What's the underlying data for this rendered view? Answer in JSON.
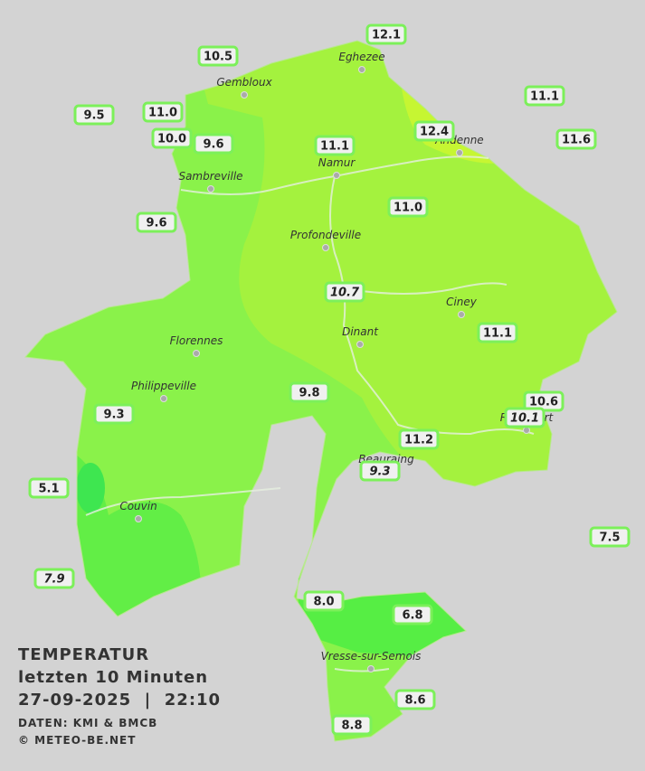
{
  "title": "TEMPERATUR",
  "subtitle": "letzten 10 Minuten",
  "datetime": "27-09-2025  |  22:10",
  "source": "DATEN: KMI & BMCB",
  "credit": "© METEO-BE.NET",
  "towns": [
    "Eghezee",
    "Gembloux",
    "Andenne",
    "Namur",
    "Sambreville",
    "Profondeville",
    "Ciney",
    "Dinant",
    "Florennes",
    "Philippeville",
    "Rochefort",
    "Beauraing",
    "Couvin",
    "Vresse-sur-Semois"
  ],
  "stations": [
    "12.1",
    "10.5",
    "9.5",
    "11.0",
    "10.0",
    "9.6",
    "11.1",
    "12.4",
    "11.1",
    "11.6",
    "9.6",
    "11.0",
    "10.7",
    "11.1",
    "9.8",
    "9.3",
    "10.6",
    "10.1",
    "11.2",
    "9.3",
    "5.1",
    "7.5",
    "7.9",
    "8.0",
    "6.8",
    "8.6",
    "8.8"
  ]
}
